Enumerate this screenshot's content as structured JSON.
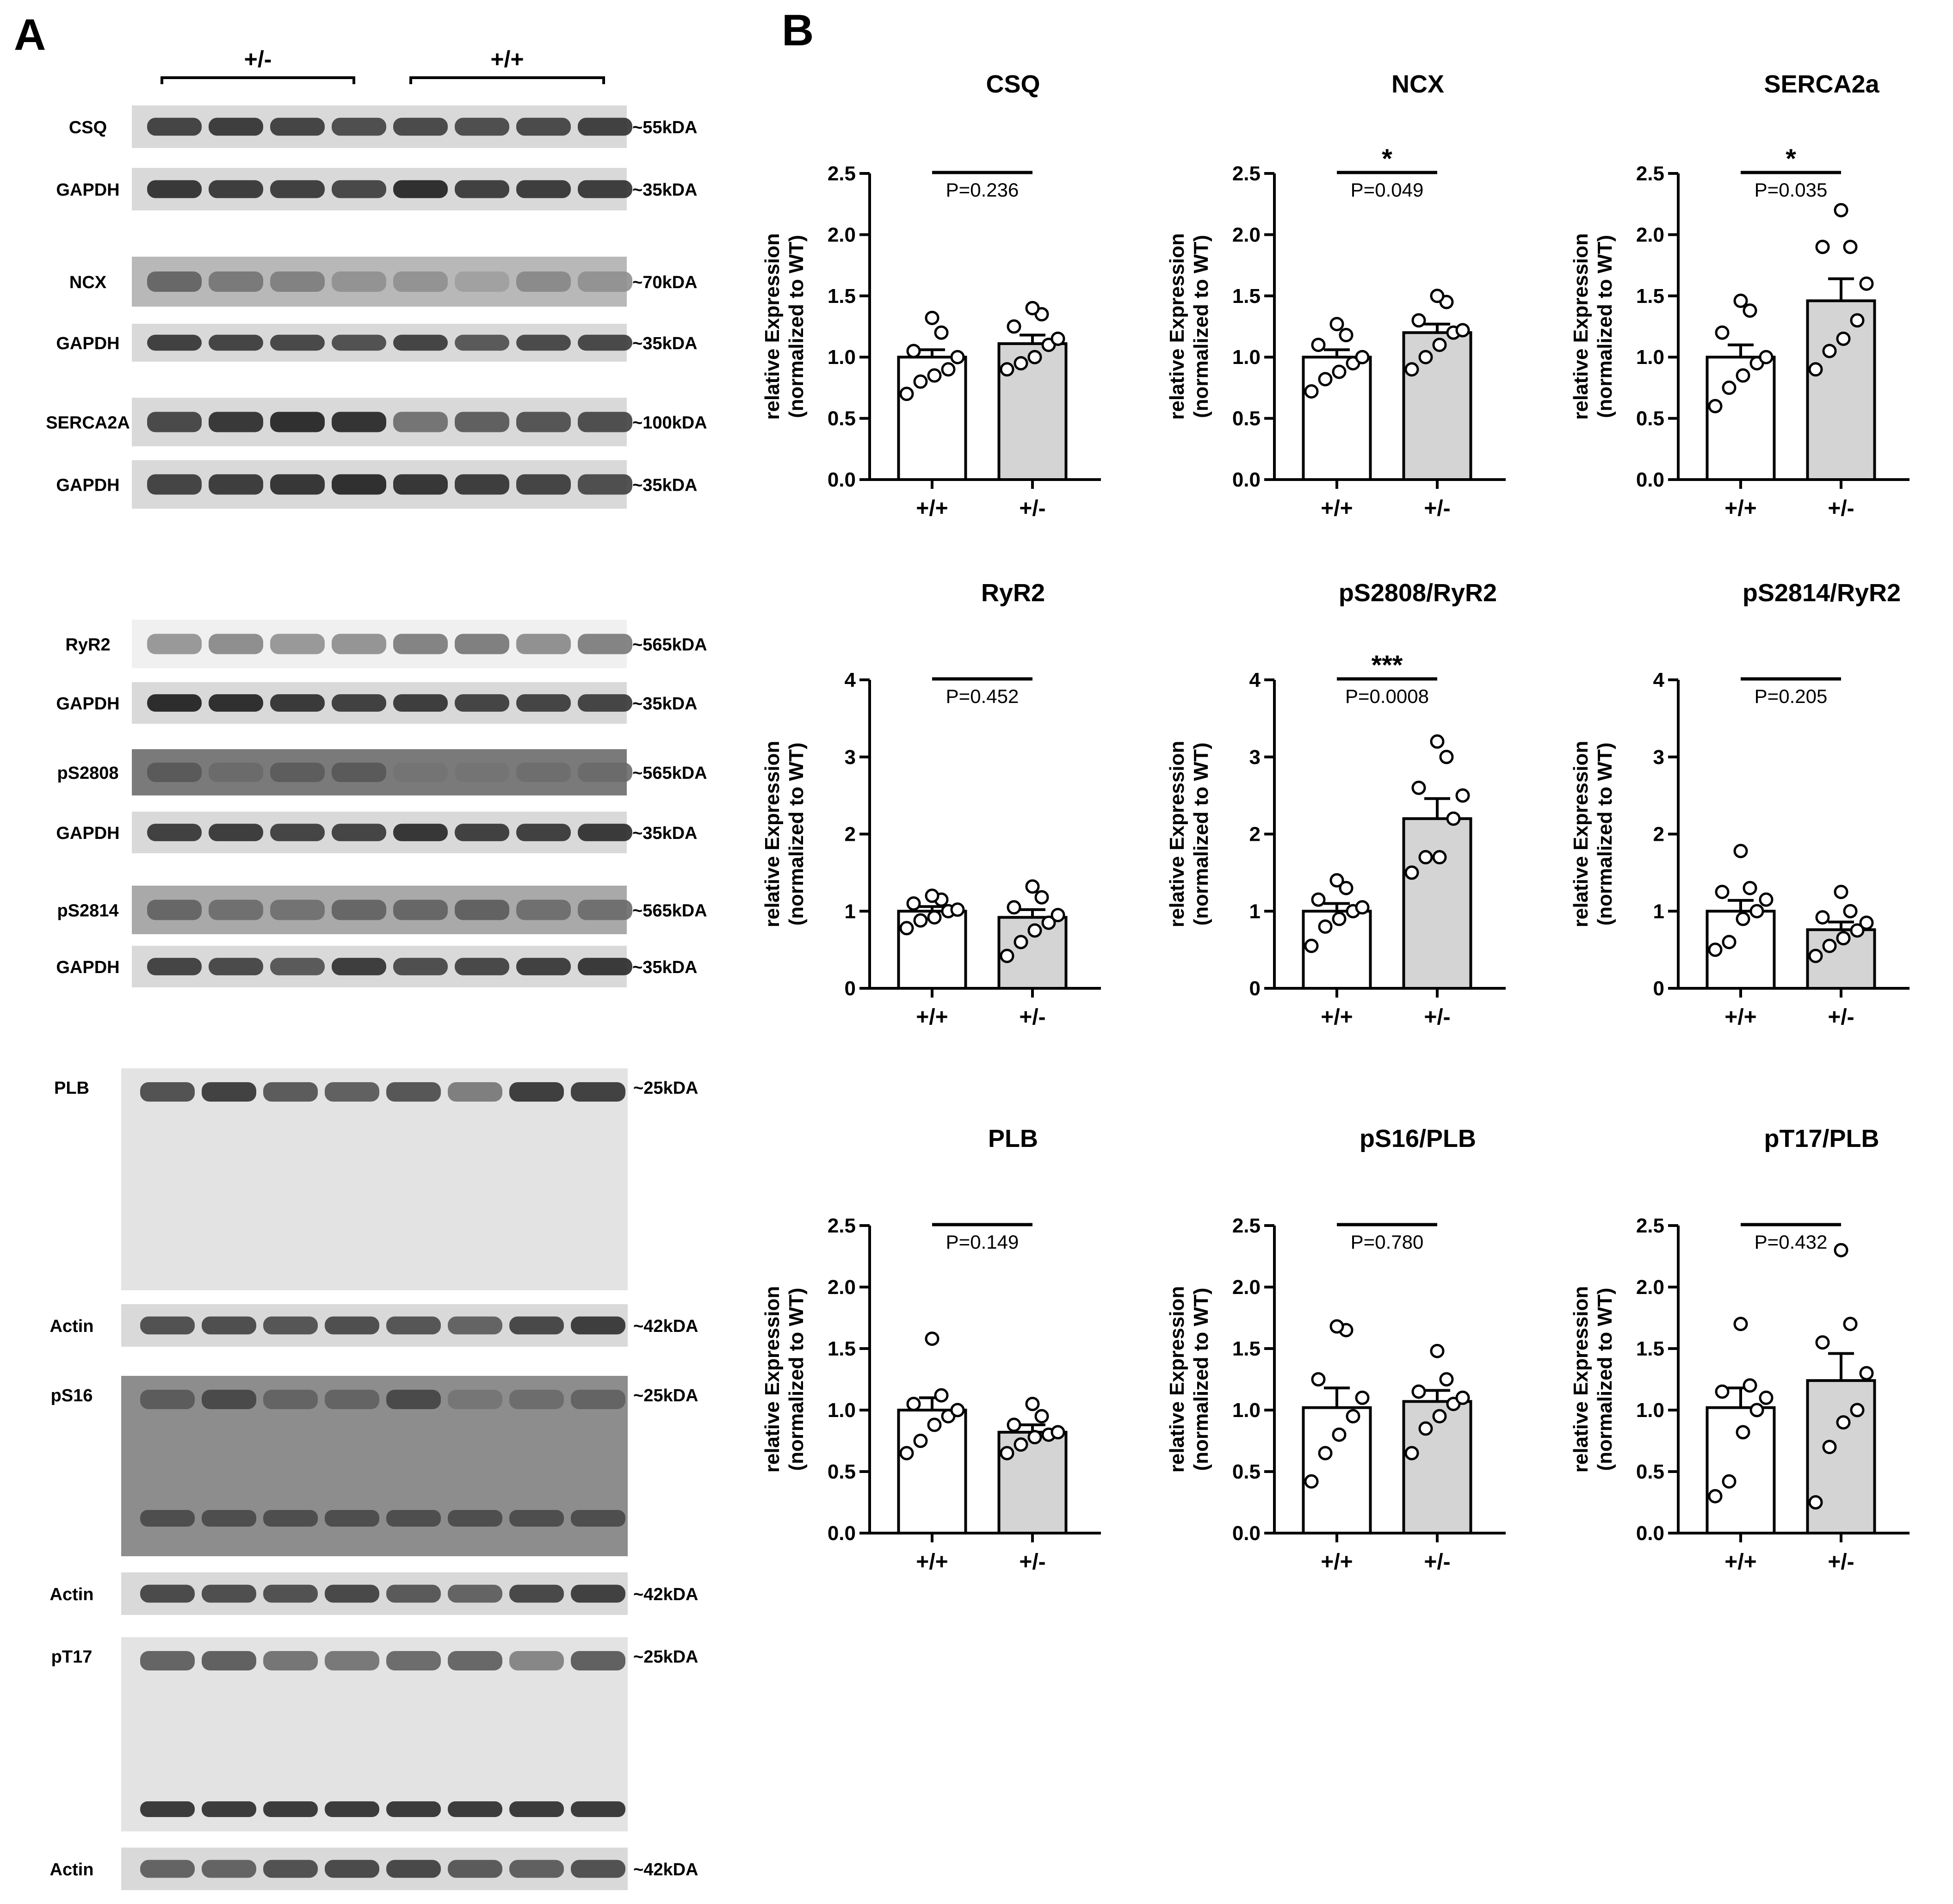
{
  "figure": {
    "panel_a_label": "A",
    "panel_b_label": "B",
    "blot_groups": [
      "+/-",
      "+/+"
    ],
    "lanes_per_group": 4,
    "blots": [
      {
        "label": "CSQ",
        "size": "~55kDA",
        "kind": "thin",
        "intensities": [
          0.78,
          0.82,
          0.78,
          0.72,
          0.74,
          0.72,
          0.74,
          0.8
        ]
      },
      {
        "label": "GAPDH",
        "size": "~35kDA",
        "kind": "thin",
        "intensities": [
          0.85,
          0.82,
          0.8,
          0.76,
          0.9,
          0.8,
          0.82,
          0.82
        ]
      },
      {
        "label": "NCX",
        "size": "~70kDA",
        "kind": "diffuse",
        "intensities": [
          0.55,
          0.45,
          0.4,
          0.3,
          0.3,
          0.22,
          0.35,
          0.3
        ]
      },
      {
        "label": "GAPDH",
        "size": "~35kDA",
        "kind": "thin",
        "intensities": [
          0.8,
          0.78,
          0.76,
          0.7,
          0.78,
          0.66,
          0.74,
          0.76
        ]
      },
      {
        "label": "SERCA2A",
        "size": "~100kDA",
        "kind": "thin",
        "intensities": [
          0.75,
          0.85,
          0.9,
          0.88,
          0.5,
          0.62,
          0.68,
          0.72
        ]
      },
      {
        "label": "GAPDH",
        "size": "~35kDA",
        "kind": "thin",
        "intensities": [
          0.78,
          0.82,
          0.86,
          0.9,
          0.86,
          0.82,
          0.78,
          0.72
        ]
      },
      {
        "label": "RyR2",
        "size": "~565kDA",
        "kind": "faint",
        "intensities": [
          0.3,
          0.36,
          0.3,
          0.32,
          0.42,
          0.45,
          0.35,
          0.42
        ]
      },
      {
        "label": "GAPDH",
        "size": "~35kDA",
        "kind": "thin",
        "intensities": [
          0.92,
          0.9,
          0.84,
          0.8,
          0.82,
          0.78,
          0.78,
          0.78
        ]
      },
      {
        "label": "pS2808",
        "size": "~565kDA",
        "kind": "dark",
        "intensities": [
          0.6,
          0.5,
          0.58,
          0.6,
          0.45,
          0.45,
          0.48,
          0.5
        ]
      },
      {
        "label": "GAPDH",
        "size": "~35kDA",
        "kind": "thin",
        "intensities": [
          0.8,
          0.82,
          0.78,
          0.78,
          0.86,
          0.8,
          0.8,
          0.84
        ]
      },
      {
        "label": "pS2814",
        "size": "~565kDA",
        "kind": "medium",
        "intensities": [
          0.55,
          0.5,
          0.48,
          0.55,
          0.55,
          0.58,
          0.5,
          0.5
        ]
      },
      {
        "label": "GAPDH",
        "size": "~35kDA",
        "kind": "thin",
        "intensities": [
          0.78,
          0.74,
          0.66,
          0.82,
          0.72,
          0.76,
          0.8,
          0.84
        ]
      },
      {
        "label": "PLB",
        "size": "~25kDA",
        "kind": "tall",
        "intensities": [
          0.7,
          0.8,
          0.65,
          0.62,
          0.68,
          0.45,
          0.82,
          0.8
        ]
      },
      {
        "label": "Actin",
        "size": "~42kDA",
        "kind": "thin",
        "intensities": [
          0.7,
          0.72,
          0.68,
          0.72,
          0.68,
          0.6,
          0.76,
          0.82
        ]
      },
      {
        "label": "pS16",
        "size": "~25kDA",
        "kind": "tall-dark",
        "intensities": [
          0.6,
          0.7,
          0.55,
          0.55,
          0.7,
          0.45,
          0.5,
          0.55
        ]
      },
      {
        "label": "Actin",
        "size": "~42kDA",
        "kind": "thin",
        "intensities": [
          0.74,
          0.72,
          0.7,
          0.76,
          0.66,
          0.6,
          0.76,
          0.8
        ]
      },
      {
        "label": "pT17",
        "size": "~25kDA",
        "kind": "tall",
        "intensities": [
          0.6,
          0.62,
          0.5,
          0.48,
          0.55,
          0.58,
          0.4,
          0.62
        ]
      },
      {
        "label": "Actin",
        "size": "~42kDA",
        "kind": "thin",
        "intensities": [
          0.6,
          0.6,
          0.7,
          0.74,
          0.76,
          0.65,
          0.62,
          0.7
        ]
      }
    ]
  },
  "chart_data": [
    {
      "type": "bar",
      "title": "CSQ",
      "ylabel": "relative Expression",
      "ylabel2": "(normalized to WT)",
      "categories": [
        "+/+",
        "+/-"
      ],
      "values": [
        1.0,
        1.11
      ],
      "sem": [
        0.06,
        0.07
      ],
      "points": [
        [
          0.7,
          0.8,
          0.85,
          0.9,
          1.0,
          1.05,
          1.2,
          1.32
        ],
        [
          0.9,
          0.95,
          1.0,
          1.1,
          1.15,
          1.25,
          1.35,
          1.4
        ]
      ],
      "ylim": [
        0,
        2.5
      ],
      "yticks": [
        "0.0",
        "0.5",
        "1.0",
        "1.5",
        "2.0",
        "2.5"
      ],
      "pvalue": "P=0.236",
      "sig": ""
    },
    {
      "type": "bar",
      "title": "NCX",
      "ylabel": "relative Expression",
      "ylabel2": "(normalized to WT)",
      "categories": [
        "+/+",
        "+/-"
      ],
      "values": [
        1.0,
        1.2
      ],
      "sem": [
        0.06,
        0.07
      ],
      "points": [
        [
          0.72,
          0.82,
          0.88,
          0.95,
          1.0,
          1.1,
          1.18,
          1.27
        ],
        [
          0.9,
          1.0,
          1.1,
          1.2,
          1.22,
          1.3,
          1.45,
          1.5
        ]
      ],
      "ylim": [
        0,
        2.5
      ],
      "yticks": [
        "0.0",
        "0.5",
        "1.0",
        "1.5",
        "2.0",
        "2.5"
      ],
      "pvalue": "P=0.049",
      "sig": "*"
    },
    {
      "type": "bar",
      "title": "SERCA2a",
      "ylabel": "relative Expression",
      "ylabel2": "(normalized to WT)",
      "categories": [
        "+/+",
        "+/-"
      ],
      "values": [
        1.0,
        1.46
      ],
      "sem": [
        0.1,
        0.18
      ],
      "points": [
        [
          0.6,
          0.75,
          0.85,
          0.95,
          1.0,
          1.2,
          1.38,
          1.46
        ],
        [
          0.9,
          1.05,
          1.15,
          1.3,
          1.6,
          1.9,
          1.9,
          2.2
        ]
      ],
      "ylim": [
        0,
        2.5
      ],
      "yticks": [
        "0.0",
        "0.5",
        "1.0",
        "1.5",
        "2.0",
        "2.5"
      ],
      "pvalue": "P=0.035",
      "sig": "*"
    },
    {
      "type": "bar",
      "title": "RyR2",
      "ylabel": "relative Expression",
      "ylabel2": "(normalized to WT)",
      "categories": [
        "+/+",
        "+/-"
      ],
      "values": [
        1.0,
        0.92
      ],
      "sem": [
        0.06,
        0.1
      ],
      "points": [
        [
          0.78,
          0.88,
          0.92,
          1.0,
          1.02,
          1.1,
          1.15,
          1.2
        ],
        [
          0.42,
          0.6,
          0.75,
          0.85,
          0.95,
          1.05,
          1.18,
          1.32
        ]
      ],
      "ylim": [
        0,
        4
      ],
      "yticks": [
        "0",
        "1",
        "2",
        "3",
        "4"
      ],
      "pvalue": "P=0.452",
      "sig": ""
    },
    {
      "type": "bar",
      "title": "pS2808/RyR2",
      "ylabel": "relative Expression",
      "ylabel2": "(normalized to WT)",
      "categories": [
        "+/+",
        "+/-"
      ],
      "values": [
        1.0,
        2.2
      ],
      "sem": [
        0.1,
        0.26
      ],
      "points": [
        [
          0.55,
          0.8,
          0.9,
          1.0,
          1.05,
          1.15,
          1.3,
          1.4
        ],
        [
          1.5,
          1.7,
          1.7,
          2.2,
          2.5,
          2.6,
          3.0,
          3.2
        ]
      ],
      "ylim": [
        0,
        4
      ],
      "yticks": [
        "0",
        "1",
        "2",
        "3",
        "4"
      ],
      "pvalue": "P=0.0008",
      "sig": "***"
    },
    {
      "type": "bar",
      "title": "pS2814/RyR2",
      "ylabel": "relative Expression",
      "ylabel2": "(normalized to WT)",
      "categories": [
        "+/+",
        "+/-"
      ],
      "values": [
        1.0,
        0.76
      ],
      "sem": [
        0.14,
        0.1
      ],
      "points": [
        [
          0.5,
          0.6,
          0.9,
          1.0,
          1.15,
          1.25,
          1.3,
          1.78
        ],
        [
          0.42,
          0.55,
          0.65,
          0.75,
          0.85,
          0.92,
          1.0,
          1.25
        ]
      ],
      "ylim": [
        0,
        4
      ],
      "yticks": [
        "0",
        "1",
        "2",
        "3",
        "4"
      ],
      "pvalue": "P=0.205",
      "sig": ""
    },
    {
      "type": "bar",
      "title": "PLB",
      "ylabel": "relative Expression",
      "ylabel2": "(normalized to WT)",
      "categories": [
        "+/+",
        "+/-"
      ],
      "values": [
        1.0,
        0.82
      ],
      "sem": [
        0.1,
        0.06
      ],
      "points": [
        [
          0.65,
          0.75,
          0.88,
          0.95,
          1.0,
          1.05,
          1.12,
          1.58
        ],
        [
          0.65,
          0.72,
          0.78,
          0.8,
          0.82,
          0.88,
          0.95,
          1.05
        ]
      ],
      "ylim": [
        0,
        2.5
      ],
      "yticks": [
        "0.0",
        "0.5",
        "1.0",
        "1.5",
        "2.0",
        "2.5"
      ],
      "pvalue": "P=0.149",
      "sig": ""
    },
    {
      "type": "bar",
      "title": "pS16/PLB",
      "ylabel": "relative Expression",
      "ylabel2": "(normalized to WT)",
      "categories": [
        "+/+",
        "+/-"
      ],
      "values": [
        1.02,
        1.07
      ],
      "sem": [
        0.16,
        0.09
      ],
      "points": [
        [
          0.42,
          0.65,
          0.8,
          0.95,
          1.1,
          1.25,
          1.65,
          1.68
        ],
        [
          0.65,
          0.85,
          0.95,
          1.05,
          1.1,
          1.15,
          1.25,
          1.48
        ]
      ],
      "ylim": [
        0,
        2.5
      ],
      "yticks": [
        "0.0",
        "0.5",
        "1.0",
        "1.5",
        "2.0",
        "2.5"
      ],
      "pvalue": "P=0.780",
      "sig": ""
    },
    {
      "type": "bar",
      "title": "pT17/PLB",
      "ylabel": "relative Expression",
      "ylabel2": "(normalized to WT)",
      "categories": [
        "+/+",
        "+/-"
      ],
      "values": [
        1.02,
        1.24
      ],
      "sem": [
        0.16,
        0.22
      ],
      "points": [
        [
          0.3,
          0.42,
          0.82,
          1.0,
          1.1,
          1.15,
          1.2,
          1.7
        ],
        [
          0.25,
          0.7,
          0.9,
          1.0,
          1.3,
          1.55,
          1.7,
          2.3
        ]
      ],
      "ylim": [
        0,
        2.5
      ],
      "yticks": [
        "0.0",
        "0.5",
        "1.0",
        "1.5",
        "2.0",
        "2.5"
      ],
      "pvalue": "P=0.432",
      "sig": ""
    }
  ]
}
